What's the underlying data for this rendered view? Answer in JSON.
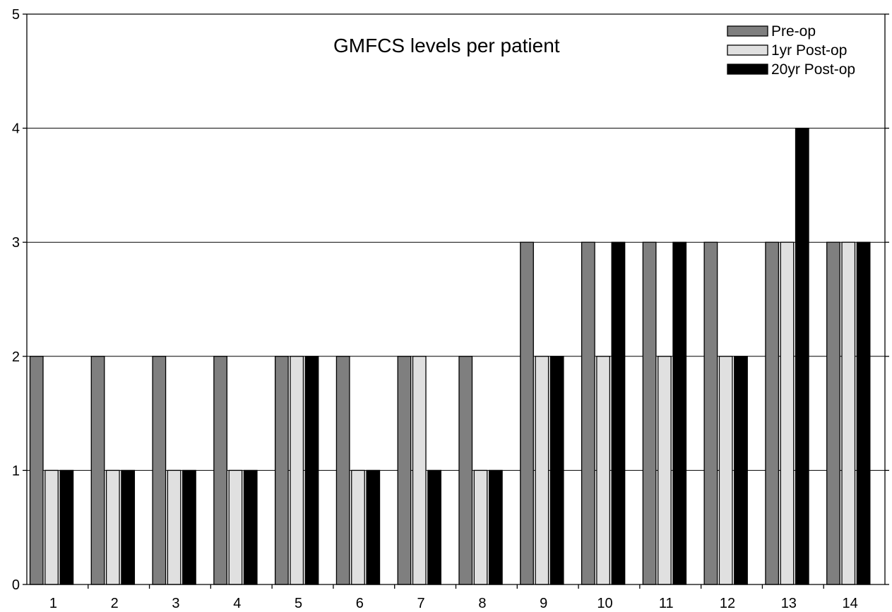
{
  "chart_data": {
    "type": "bar",
    "title": "GMFCS levels per patient",
    "xlabel": "",
    "ylabel": "",
    "categories": [
      "1",
      "2",
      "3",
      "4",
      "5",
      "6",
      "7",
      "8",
      "9",
      "10",
      "11",
      "12",
      "13",
      "14"
    ],
    "series": [
      {
        "name": "Pre-op",
        "color": "#7f7f7f",
        "values": [
          2,
          2,
          2,
          2,
          2,
          2,
          2,
          2,
          3,
          3,
          3,
          3,
          3,
          3
        ]
      },
      {
        "name": "1yr Post-op",
        "color": "#e0e0e0",
        "values": [
          1,
          1,
          1,
          1,
          2,
          1,
          2,
          1,
          2,
          2,
          2,
          2,
          3,
          3
        ]
      },
      {
        "name": "20yr Post-op",
        "color": "#000000",
        "values": [
          1,
          1,
          1,
          1,
          2,
          1,
          1,
          1,
          2,
          3,
          3,
          2,
          4,
          3
        ]
      }
    ],
    "ylim": [
      0,
      5
    ],
    "yticks": [
      "0",
      "1",
      "2",
      "3",
      "4",
      "5"
    ],
    "grid": true,
    "legend_position": "top-right"
  }
}
